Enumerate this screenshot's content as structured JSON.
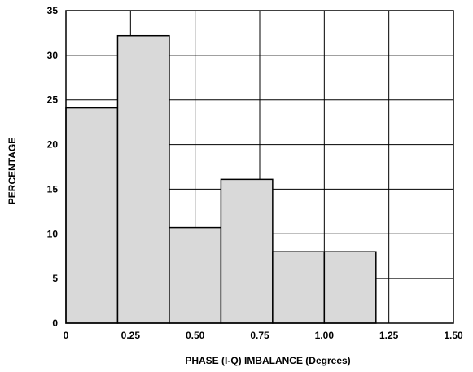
{
  "chart_data": {
    "type": "bar",
    "title": "",
    "xlabel": "PHASE (I-Q) IMBALANCE (Degrees)",
    "ylabel": "PERCENTAGE",
    "xlim": [
      0,
      1.5
    ],
    "ylim": [
      0,
      35
    ],
    "x_ticks": [
      "0",
      "0.25",
      "0.50",
      "0.75",
      "1.00",
      "1.25",
      "1.50"
    ],
    "y_ticks": [
      "0",
      "5",
      "10",
      "15",
      "20",
      "25",
      "30",
      "35"
    ],
    "grid": true,
    "bar_color": "#d9d9d9",
    "bins": [
      {
        "x0": 0.0,
        "x1": 0.2,
        "value": 24.1
      },
      {
        "x0": 0.2,
        "x1": 0.4,
        "value": 32.2
      },
      {
        "x0": 0.4,
        "x1": 0.6,
        "value": 10.7
      },
      {
        "x0": 0.6,
        "x1": 0.8,
        "value": 16.1
      },
      {
        "x0": 0.8,
        "x1": 1.0,
        "value": 8.0
      },
      {
        "x0": 1.0,
        "x1": 1.2,
        "value": 8.0
      }
    ]
  }
}
